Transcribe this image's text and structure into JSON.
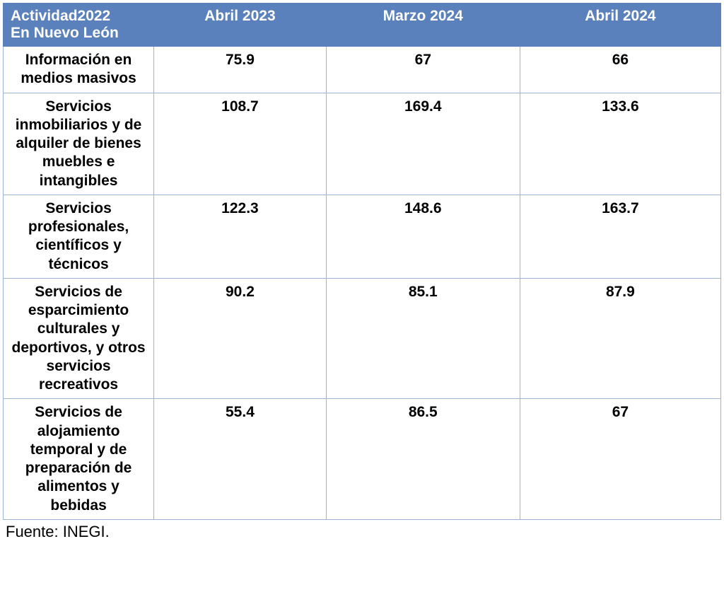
{
  "type": "table",
  "colors": {
    "header_bg": "#5a81bc",
    "header_text": "#ffffff",
    "border": "#9db3d6",
    "cell_text": "#000000",
    "background": "#ffffff"
  },
  "typography": {
    "font_family": "Arial",
    "header_fontsize": 21,
    "header_weight": 700,
    "cell_fontsize": 21,
    "cell_weight": 700,
    "source_fontsize": 22,
    "source_weight": 400
  },
  "column_widths_pct": [
    21,
    24,
    27,
    28
  ],
  "columns": {
    "c0_line1": "Actividad2022",
    "c0_line2": "En Nuevo León",
    "c1": "Abril 2023",
    "c2": "Marzo 2024",
    "c3": "Abril 2024"
  },
  "rows": [
    {
      "label": "Información en medios masivos",
      "v1": "75.9",
      "v2": "67",
      "v3": "66"
    },
    {
      "label": "Servicios inmobiliarios y de alquiler de bienes muebles e intangibles",
      "v1": "108.7",
      "v2": "169.4",
      "v3": "133.6"
    },
    {
      "label": "Servicios profesionales, científicos y técnicos",
      "v1": "122.3",
      "v2": "148.6",
      "v3": "163.7"
    },
    {
      "label": "Servicios de esparcimiento culturales y deportivos, y otros servicios recreativos",
      "v1": "90.2",
      "v2": "85.1",
      "v3": "87.9"
    },
    {
      "label": "Servicios de alojamiento temporal y de preparación de alimentos y bebidas",
      "v1": "55.4",
      "v2": "86.5",
      "v3": "67"
    }
  ],
  "source": "Fuente: INEGI."
}
